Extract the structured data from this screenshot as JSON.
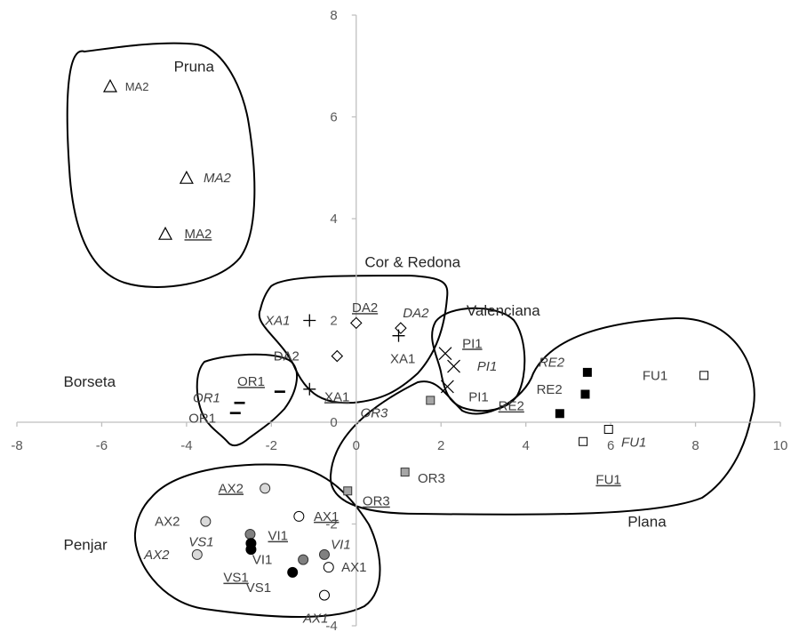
{
  "chart_data": {
    "type": "scatter",
    "title": "",
    "xlabel": "",
    "ylabel": "",
    "xlim": [
      -8,
      10
    ],
    "ylim": [
      -4,
      8
    ],
    "x_ticks": [
      "-8",
      "-6",
      "-4",
      "-2",
      "0",
      "2",
      "4",
      "6",
      "8",
      "10"
    ],
    "y_ticks": [
      "-4",
      "-2",
      "0",
      "2",
      "4",
      "6",
      "8"
    ],
    "grid": false,
    "points": [
      {
        "label": "MA2",
        "style": "plain",
        "marker": "triangle-open",
        "x": -5.8,
        "y": 6.6,
        "lx": 0.35,
        "ly": 0,
        "small": true
      },
      {
        "label": "MA2",
        "style": "italic",
        "marker": "triangle-open",
        "x": -4.0,
        "y": 4.8,
        "lx": 0.4,
        "ly": 0
      },
      {
        "label": "MA2",
        "style": "underline",
        "marker": "triangle-open",
        "x": -4.5,
        "y": 3.7,
        "lx": 0.45,
        "ly": 0
      },
      {
        "label": "XA1",
        "style": "italic",
        "marker": "plus",
        "x": -1.1,
        "y": 2.0,
        "lx": -1.05,
        "ly": 0
      },
      {
        "label": "DA2",
        "style": "underline",
        "marker": "diamond-open",
        "x": 0.0,
        "y": 1.95,
        "lx": -0.1,
        "ly": 0.3
      },
      {
        "label": "DA2",
        "style": "italic",
        "marker": "diamond-open",
        "x": 1.05,
        "y": 1.85,
        "lx": 0.05,
        "ly": 0.3
      },
      {
        "label": "XA1",
        "style": "plain",
        "marker": "plus",
        "x": 1.0,
        "y": 1.7,
        "lx": -0.2,
        "ly": -0.45
      },
      {
        "label": "DA2",
        "style": "plain",
        "marker": "diamond-open",
        "x": -0.45,
        "y": 1.3,
        "lx": -1.5,
        "ly": 0
      },
      {
        "label": "XA1",
        "style": "underline",
        "marker": "plus",
        "x": -1.1,
        "y": 0.65,
        "lx": 0.35,
        "ly": -0.15
      },
      {
        "label": "PI1",
        "style": "underline",
        "marker": "cross",
        "x": 2.1,
        "y": 1.35,
        "lx": 0.4,
        "ly": 0.2
      },
      {
        "label": "PI1",
        "style": "italic",
        "marker": "cross",
        "x": 2.3,
        "y": 1.1,
        "lx": 0.55,
        "ly": 0
      },
      {
        "label": "PI1",
        "style": "plain",
        "marker": "cross",
        "x": 2.15,
        "y": 0.7,
        "lx": 0.5,
        "ly": -0.2
      },
      {
        "label": "OR1",
        "style": "underline",
        "marker": "dash",
        "x": -1.8,
        "y": 0.6,
        "lx": -1.0,
        "ly": 0.2
      },
      {
        "label": "OR1",
        "style": "italic",
        "marker": "dash",
        "x": -2.75,
        "y": 0.38,
        "lx": -1.1,
        "ly": 0.1
      },
      {
        "label": "OR1",
        "style": "plain",
        "marker": "dash",
        "x": -2.85,
        "y": 0.18,
        "lx": -1.1,
        "ly": -0.1
      },
      {
        "label": "RE2",
        "style": "italic",
        "marker": "square-black",
        "x": 5.45,
        "y": 0.98,
        "lx": -1.15,
        "ly": 0.2
      },
      {
        "label": "FU1",
        "style": "plain",
        "marker": "square-open",
        "x": 8.2,
        "y": 0.92,
        "lx": -1.45,
        "ly": 0
      },
      {
        "label": "RE2",
        "style": "plain",
        "marker": "square-black",
        "x": 5.4,
        "y": 0.55,
        "lx": -1.15,
        "ly": 0.1
      },
      {
        "label": "OR3",
        "style": "italic",
        "marker": "square-gray",
        "x": 1.75,
        "y": 0.43,
        "lx": -1.65,
        "ly": -0.25
      },
      {
        "label": "RE2",
        "style": "underline",
        "marker": "square-black",
        "x": 4.8,
        "y": 0.17,
        "lx": -1.45,
        "ly": 0.15
      },
      {
        "label": "FU1",
        "style": "italic",
        "marker": "square-open",
        "x": 5.95,
        "y": -0.14,
        "lx": 0.3,
        "ly": -0.25
      },
      {
        "label": "FU1",
        "style": "plain",
        "marker": "square-open",
        "x": 5.35,
        "y": -0.38,
        "lx": 0,
        "ly": 0
      },
      {
        "label": "FU1",
        "style": "underline",
        "marker": "square-open",
        "x": 5.35,
        "y": -0.38,
        "lx": 0.3,
        "ly": -0.75
      },
      {
        "label": "OR3",
        "style": "plain",
        "marker": "square-gray",
        "x": 1.15,
        "y": -0.98,
        "lx": 0.3,
        "ly": -0.12
      },
      {
        "label": "OR3",
        "style": "underline",
        "marker": "square-gray",
        "x": -0.2,
        "y": -1.35,
        "lx": 0.35,
        "ly": -0.2
      },
      {
        "label": "AX2",
        "style": "underline",
        "marker": "circle-lightgray",
        "x": -2.15,
        "y": -1.3,
        "lx": -1.1,
        "ly": 0
      },
      {
        "label": "AX2",
        "style": "plain",
        "marker": "circle-lightgray",
        "x": -3.55,
        "y": -1.95,
        "lx": -1.2,
        "ly": 0
      },
      {
        "label": "AX1",
        "style": "plain",
        "marker": "circle-open",
        "x": -1.35,
        "y": -1.85,
        "lx": 0,
        "ly": 0
      },
      {
        "label": "AX1",
        "style": "underline",
        "marker": "circle-open",
        "x": -1.35,
        "y": -1.85,
        "lx": 0.35,
        "ly": 0
      },
      {
        "label": "VS1",
        "style": "italic",
        "marker": "circle-darkgray",
        "x": -2.5,
        "y": -2.2,
        "lx": -1.45,
        "ly": -0.15
      },
      {
        "label": "VI1",
        "style": "underline",
        "marker": "circle-black",
        "x": -2.48,
        "y": -2.38,
        "lx": 0.4,
        "ly": 0.15
      },
      {
        "label": "VS1",
        "style": "plain",
        "marker": "circle-black",
        "x": -2.48,
        "y": -2.5,
        "lx": 0,
        "ly": 0
      },
      {
        "label": "AX2",
        "style": "italic",
        "marker": "circle-lightgray",
        "x": -3.75,
        "y": -2.6,
        "lx": -1.25,
        "ly": 0
      },
      {
        "label": "VI1",
        "style": "italic",
        "marker": "circle-darkgray",
        "x": -0.75,
        "y": -2.6,
        "lx": 0.15,
        "ly": 0.2
      },
      {
        "label": "VI1",
        "style": "plain",
        "marker": "circle-darkgray",
        "x": -1.25,
        "y": -2.7,
        "lx": -1.2,
        "ly": 0
      },
      {
        "label": "AX1",
        "style": "plain",
        "marker": "circle-open",
        "x": -0.65,
        "y": -2.85,
        "lx": 0.3,
        "ly": 0
      },
      {
        "label": "VS1",
        "style": "underline",
        "marker": "circle-black",
        "x": -2.48,
        "y": -2.5,
        "lx": -0.65,
        "ly": -0.55
      },
      {
        "label": "VS1",
        "style": "plain",
        "marker": "circle-black",
        "x": -1.5,
        "y": -2.95,
        "lx": -1.1,
        "ly": -0.3
      },
      {
        "label": "AX1",
        "style": "italic",
        "marker": "circle-open",
        "x": -0.75,
        "y": -3.4,
        "lx": -0.5,
        "ly": -0.45
      }
    ],
    "groups": [
      {
        "name": "Pruna",
        "lx": -4.3,
        "ly": 7.0
      },
      {
        "name": "Cor & Redona",
        "lx": 0.2,
        "ly": 3.15
      },
      {
        "name": "Valenciana",
        "lx": 2.6,
        "ly": 2.2
      },
      {
        "name": "Borseta",
        "lx": -6.9,
        "ly": 0.8
      },
      {
        "name": "Plana",
        "lx": 6.4,
        "ly": -1.95
      },
      {
        "name": "Penjar",
        "lx": -6.9,
        "ly": -2.4
      }
    ]
  },
  "colors": {
    "axis": "#bfbfbf",
    "outline": "#000000",
    "marker_black": "#000000",
    "marker_darkgray": "#808080",
    "marker_lightgray": "#d9d9d9",
    "square_gray": "#a6a6a6"
  }
}
